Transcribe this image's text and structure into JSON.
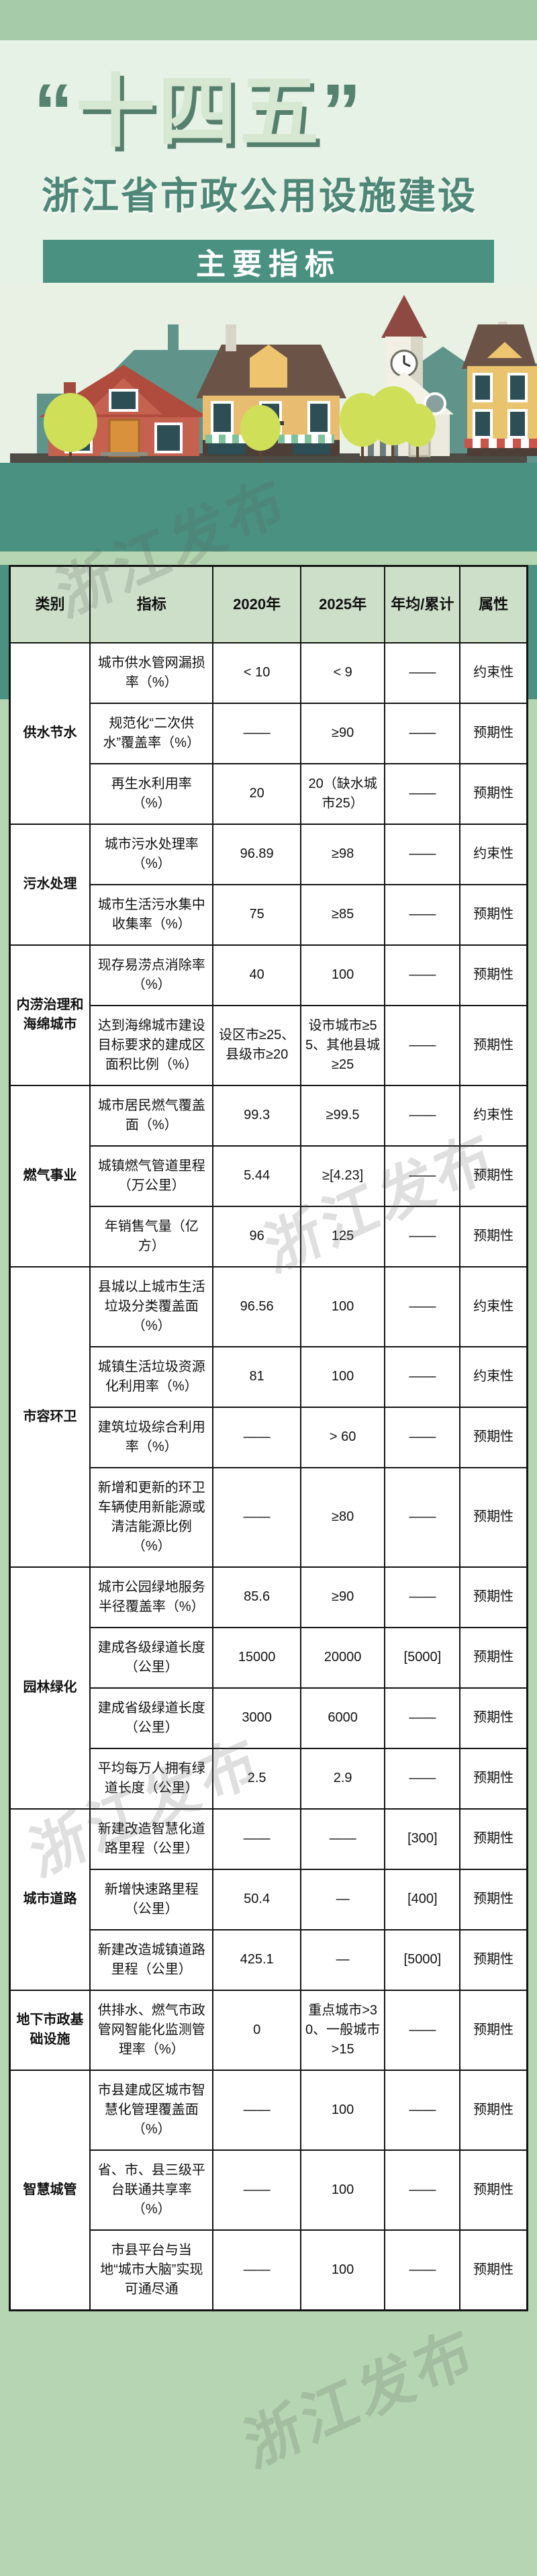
{
  "page": {
    "background": "#b6d5b2",
    "top_band_color": "#a5cba8",
    "hero_background": "#e7f2e7",
    "accent_teal": "#4a9181",
    "table_header_bg": "#cddfc9",
    "title_dark_green": "#4e8777"
  },
  "hero": {
    "title_quote_open": "“",
    "title_text": "十四五",
    "title_quote_close": "”",
    "subtitle": "浙江省市政公用设施建设",
    "banner": "主要指标"
  },
  "watermark": {
    "text": "浙江发布"
  },
  "table": {
    "columns": [
      "类别",
      "指标",
      "2020年",
      "2025年",
      "年均/累计",
      "属性"
    ],
    "sections": [
      {
        "category": "供水节水",
        "rows": [
          {
            "indicator": "城市供水管网漏损率（%）",
            "y2020": "< 10",
            "y2025": "< 9",
            "avg": "——",
            "attr": "约束性"
          },
          {
            "indicator": "规范化“二次供水”覆盖率（%）",
            "y2020": "——",
            "y2025": "≥90",
            "avg": "——",
            "attr": "预期性"
          },
          {
            "indicator": "再生水利用率（%）",
            "y2020": "20",
            "y2025": "20（缺水城市25）",
            "avg": "——",
            "attr": "预期性"
          }
        ]
      },
      {
        "category": "污水处理",
        "rows": [
          {
            "indicator": "城市污水处理率（%）",
            "y2020": "96.89",
            "y2025": "≥98",
            "avg": "——",
            "attr": "约束性"
          },
          {
            "indicator": "城市生活污水集中收集率（%）",
            "y2020": "75",
            "y2025": "≥85",
            "avg": "——",
            "attr": "预期性"
          }
        ]
      },
      {
        "category": "内涝治理和海绵城市",
        "rows": [
          {
            "indicator": "现存易涝点消除率（%）",
            "y2020": "40",
            "y2025": "100",
            "avg": "——",
            "attr": "预期性"
          },
          {
            "indicator": "达到海绵城市建设目标要求的建成区面积比例（%）",
            "y2020": "设区市≥25、县级市≥20",
            "y2025": "设市城市≥55、其他县城≥25",
            "avg": "——",
            "attr": "预期性"
          }
        ]
      },
      {
        "category": "燃气事业",
        "rows": [
          {
            "indicator": "城市居民燃气覆盖面（%）",
            "y2020": "99.3",
            "y2025": "≥99.5",
            "avg": "——",
            "attr": "约束性"
          },
          {
            "indicator": "城镇燃气管道里程（万公里）",
            "y2020": "5.44",
            "y2025": "≥[4.23]",
            "avg": "——",
            "attr": "预期性"
          },
          {
            "indicator": "年销售气量（亿方）",
            "y2020": "96",
            "y2025": "125",
            "avg": "——",
            "attr": "预期性"
          }
        ]
      },
      {
        "category": "市容环卫",
        "rows": [
          {
            "indicator": "县城以上城市生活垃圾分类覆盖面（%）",
            "y2020": "96.56",
            "y2025": "100",
            "avg": "——",
            "attr": "约束性"
          },
          {
            "indicator": "城镇生活垃圾资源化利用率（%）",
            "y2020": "81",
            "y2025": "100",
            "avg": "——",
            "attr": "约束性"
          },
          {
            "indicator": "建筑垃圾综合利用率（%）",
            "y2020": "——",
            "y2025": "> 60",
            "avg": "——",
            "attr": "预期性"
          },
          {
            "indicator": "新增和更新的环卫车辆使用新能源或清洁能源比例（%）",
            "y2020": "——",
            "y2025": "≥80",
            "avg": "——",
            "attr": "预期性"
          }
        ]
      },
      {
        "category": "园林绿化",
        "rows": [
          {
            "indicator": "城市公园绿地服务半径覆盖率（%）",
            "y2020": "85.6",
            "y2025": "≥90",
            "avg": "——",
            "attr": "预期性"
          },
          {
            "indicator": "建成各级绿道长度（公里）",
            "y2020": "15000",
            "y2025": "20000",
            "avg": "[5000]",
            "attr": "预期性"
          },
          {
            "indicator": "建成省级绿道长度（公里）",
            "y2020": "3000",
            "y2025": "6000",
            "avg": "——",
            "attr": "预期性"
          },
          {
            "indicator": "平均每万人拥有绿道长度（公里）",
            "y2020": "2.5",
            "y2025": "2.9",
            "avg": "——",
            "attr": "预期性"
          }
        ]
      },
      {
        "category": "城市道路",
        "rows": [
          {
            "indicator": "新建改造智慧化道路里程（公里）",
            "y2020": "——",
            "y2025": "——",
            "avg": "[300]",
            "attr": "预期性"
          },
          {
            "indicator": "新增快速路里程（公里）",
            "y2020": "50.4",
            "y2025": "—",
            "avg": "[400]",
            "attr": "预期性"
          },
          {
            "indicator": "新建改造城镇道路里程（公里）",
            "y2020": "425.1",
            "y2025": "—",
            "avg": "[5000]",
            "attr": "预期性"
          }
        ]
      },
      {
        "category": "地下市政基础设施",
        "rows": [
          {
            "indicator": "供排水、燃气市政管网智能化监测管理率（%）",
            "y2020": "0",
            "y2025": "重点城市>30、一般城市>15",
            "avg": "——",
            "attr": "预期性"
          }
        ]
      },
      {
        "category": "智慧城管",
        "rows": [
          {
            "indicator": "市县建成区城市智慧化管理覆盖面（%）",
            "y2020": "——",
            "y2025": "100",
            "avg": "——",
            "attr": "预期性"
          },
          {
            "indicator": "省、市、县三级平台联通共享率（%）",
            "y2020": "——",
            "y2025": "100",
            "avg": "——",
            "attr": "预期性"
          },
          {
            "indicator": "市县平台与当地“城市大脑”实现可通尽通",
            "y2020": "——",
            "y2025": "100",
            "avg": "——",
            "attr": "预期性"
          }
        ]
      }
    ]
  },
  "chart_data": {
    "type": "table",
    "title": "“十四五”浙江省市政公用设施建设主要指标",
    "columns": [
      "类别",
      "指标",
      "2020年",
      "2025年",
      "年均/累计",
      "属性"
    ],
    "rows": [
      [
        "供水节水",
        "城市供水管网漏损率（%）",
        "<10",
        "<9",
        "——",
        "约束性"
      ],
      [
        "供水节水",
        "规范化“二次供水”覆盖率（%）",
        "——",
        "≥90",
        "——",
        "预期性"
      ],
      [
        "供水节水",
        "再生水利用率（%）",
        "20",
        "20（缺水城市25）",
        "——",
        "预期性"
      ],
      [
        "污水处理",
        "城市污水处理率（%）",
        "96.89",
        "≥98",
        "——",
        "约束性"
      ],
      [
        "污水处理",
        "城市生活污水集中收集率（%）",
        "75",
        "≥85",
        "——",
        "预期性"
      ],
      [
        "内涝治理和海绵城市",
        "现存易涝点消除率（%）",
        "40",
        "100",
        "——",
        "预期性"
      ],
      [
        "内涝治理和海绵城市",
        "达到海绵城市建设目标要求的建成区面积比例（%）",
        "设区市≥25、县级市≥20",
        "设市城市≥55、其他县城≥25",
        "——",
        "预期性"
      ],
      [
        "燃气事业",
        "城市居民燃气覆盖面（%）",
        "99.3",
        "≥99.5",
        "——",
        "约束性"
      ],
      [
        "燃气事业",
        "城镇燃气管道里程（万公里）",
        "5.44",
        "≥[4.23]",
        "——",
        "预期性"
      ],
      [
        "燃气事业",
        "年销售气量（亿方）",
        "96",
        "125",
        "——",
        "预期性"
      ],
      [
        "市容环卫",
        "县城以上城市生活垃圾分类覆盖面（%）",
        "96.56",
        "100",
        "——",
        "约束性"
      ],
      [
        "市容环卫",
        "城镇生活垃圾资源化利用率（%）",
        "81",
        "100",
        "——",
        "约束性"
      ],
      [
        "市容环卫",
        "建筑垃圾综合利用率（%）",
        "——",
        ">60",
        "——",
        "预期性"
      ],
      [
        "市容环卫",
        "新增和更新的环卫车辆使用新能源或清洁能源比例（%）",
        "——",
        "≥80",
        "——",
        "预期性"
      ],
      [
        "园林绿化",
        "城市公园绿地服务半径覆盖率（%）",
        "85.6",
        "≥90",
        "——",
        "预期性"
      ],
      [
        "园林绿化",
        "建成各级绿道长度（公里）",
        "15000",
        "20000",
        "[5000]",
        "预期性"
      ],
      [
        "园林绿化",
        "建成省级绿道长度（公里）",
        "3000",
        "6000",
        "——",
        "预期性"
      ],
      [
        "园林绿化",
        "平均每万人拥有绿道长度（公里）",
        "2.5",
        "2.9",
        "——",
        "预期性"
      ],
      [
        "城市道路",
        "新建改造智慧化道路里程（公里）",
        "——",
        "——",
        "[300]",
        "预期性"
      ],
      [
        "城市道路",
        "新增快速路里程（公里）",
        "50.4",
        "—",
        "[400]",
        "预期性"
      ],
      [
        "城市道路",
        "新建改造城镇道路里程（公里）",
        "425.1",
        "—",
        "[5000]",
        "预期性"
      ],
      [
        "地下市政基础设施",
        "供排水、燃气市政管网智能化监测管理率（%）",
        "0",
        "重点城市>30、一般城市>15",
        "——",
        "预期性"
      ],
      [
        "智慧城管",
        "市县建成区城市智慧化管理覆盖面（%）",
        "——",
        "100",
        "——",
        "预期性"
      ],
      [
        "智慧城管",
        "省、市、县三级平台联通共享率（%）",
        "——",
        "100",
        "——",
        "预期性"
      ],
      [
        "智慧城管",
        "市县平台与当地“城市大脑”实现可通尽通",
        "——",
        "100",
        "——",
        "预期性"
      ]
    ]
  }
}
